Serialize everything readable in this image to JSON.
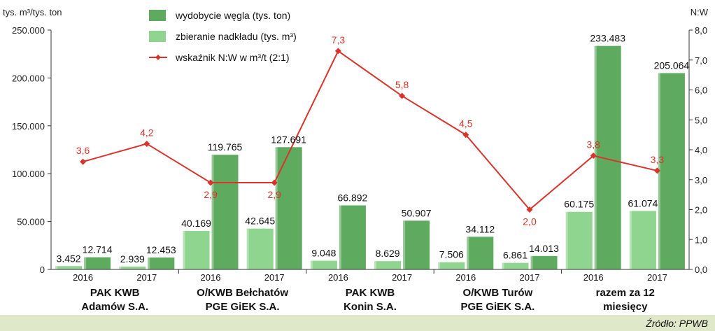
{
  "chart_data": {
    "type": "bar",
    "left_axis_unit": "tys. m³/tys. ton",
    "right_axis_unit": "N:W",
    "left_ticks": [
      "0",
      "50.000",
      "100.000",
      "150.000",
      "200.000",
      "250.000"
    ],
    "right_ticks": [
      "0,0",
      "1,0",
      "2,0",
      "3,0",
      "4,0",
      "5,0",
      "6,0",
      "7,0",
      "8,0"
    ],
    "ylim_left": [
      0,
      250000
    ],
    "ylim_right": [
      0,
      8
    ],
    "groups": [
      {
        "label_line1": "PAK KWB",
        "label_line2": "Adamów S.A."
      },
      {
        "label_line1": "O/KWB Bełchatów",
        "label_line2": "PGE GiEK S.A."
      },
      {
        "label_line1": "PAK KWB",
        "label_line2": "Konin S.A."
      },
      {
        "label_line1": "O/KWB Turów",
        "label_line2": "PGE GiEK S.A."
      },
      {
        "label_line1": "razem za 12",
        "label_line2": "miesięcy"
      }
    ],
    "categories": [
      "2016",
      "2017",
      "2016",
      "2017",
      "2016",
      "2017",
      "2016",
      "2017",
      "2016",
      "2017"
    ],
    "series": [
      {
        "name": "zbieranie nadkładu (tys. m³)",
        "kind": "bar",
        "axis": "left",
        "color": "#8fd48f",
        "values": [
          3452,
          2939,
          40169,
          42645,
          9048,
          8629,
          7506,
          6861,
          60175,
          61074
        ],
        "labels": [
          "3.452",
          "2.939",
          "40.169",
          "42.645",
          "9.048",
          "8.629",
          "7.506",
          "6.861",
          "60.175",
          "61.074"
        ]
      },
      {
        "name": "wydobycie węgla (tys. ton)",
        "kind": "bar",
        "axis": "left",
        "color": "#5eaa5e",
        "values": [
          12714,
          12453,
          119765,
          127691,
          66892,
          50907,
          34112,
          14013,
          233483,
          205064
        ],
        "labels": [
          "12.714",
          "12.453",
          "119.765",
          "127.691",
          "66.892",
          "50.907",
          "34.112",
          "14.013",
          "233.483",
          "205.064"
        ]
      },
      {
        "name": "wskaźnik N:W w m³/t (2:1)",
        "kind": "line",
        "axis": "right",
        "color": "#d9342b",
        "values": [
          3.6,
          4.2,
          2.9,
          2.9,
          7.3,
          5.8,
          4.5,
          2.0,
          3.8,
          3.3
        ],
        "labels": [
          "3,6",
          "4,2",
          "2,9",
          "2,9",
          "7,3",
          "5,8",
          "4,5",
          "2,0",
          "3,8",
          "3,3"
        ]
      }
    ],
    "legend_order": [
      1,
      0,
      2
    ],
    "legend_position": "top-center",
    "grid": false,
    "source": "Źródło: PPWB"
  }
}
